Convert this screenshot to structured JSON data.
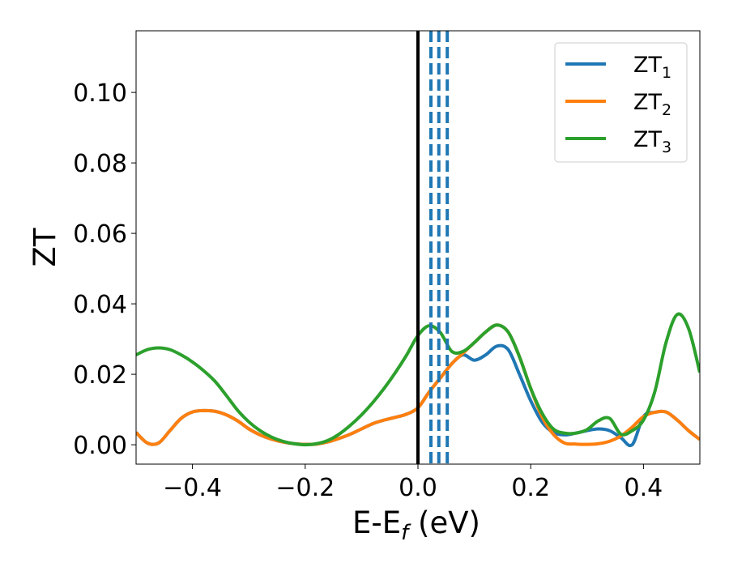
{
  "chart_data": {
    "type": "line",
    "xlabel": {
      "base": "E-E",
      "sub": "f",
      "unit": " (eV)"
    },
    "ylabel": "ZT",
    "xlim": [
      -0.5,
      0.5
    ],
    "ylim": [
      -0.0055,
      0.1175
    ],
    "x_ticks": [
      -0.4,
      -0.2,
      0.0,
      0.2,
      0.4
    ],
    "x_tick_labels": [
      "−0.4",
      "−0.2",
      "0.0",
      "0.2",
      "0.4"
    ],
    "y_ticks": [
      0.0,
      0.02,
      0.04,
      0.06,
      0.08,
      0.1
    ],
    "y_tick_labels": [
      "0.00",
      "0.02",
      "0.04",
      "0.06",
      "0.08",
      "0.10"
    ],
    "grid": false,
    "legend_position": "top-right",
    "series": [
      {
        "name": "ZT",
        "sub": "1",
        "color": "#1f77b4",
        "points": [
          [
            -0.5,
            0.0035
          ],
          [
            -0.48,
            0.0005
          ],
          [
            -0.46,
            0.0005
          ],
          [
            -0.44,
            0.004
          ],
          [
            -0.42,
            0.0075
          ],
          [
            -0.4,
            0.0093
          ],
          [
            -0.38,
            0.0097
          ],
          [
            -0.36,
            0.0095
          ],
          [
            -0.34,
            0.0085
          ],
          [
            -0.32,
            0.0068
          ],
          [
            -0.3,
            0.0045
          ],
          [
            -0.28,
            0.0028
          ],
          [
            -0.26,
            0.0016
          ],
          [
            -0.24,
            0.0008
          ],
          [
            -0.22,
            0.0003
          ],
          [
            -0.2,
            0.0001
          ],
          [
            -0.18,
            0.0002
          ],
          [
            -0.16,
            0.0008
          ],
          [
            -0.14,
            0.0018
          ],
          [
            -0.12,
            0.003
          ],
          [
            -0.1,
            0.0045
          ],
          [
            -0.08,
            0.006
          ],
          [
            -0.06,
            0.007
          ],
          [
            -0.04,
            0.0078
          ],
          [
            -0.02,
            0.0087
          ],
          [
            0.0,
            0.0105
          ],
          [
            0.02,
            0.015
          ],
          [
            0.04,
            0.019
          ],
          [
            0.06,
            0.023
          ],
          [
            0.08,
            0.0255
          ],
          [
            0.1,
            0.024
          ],
          [
            0.12,
            0.0255
          ],
          [
            0.14,
            0.028
          ],
          [
            0.16,
            0.027
          ],
          [
            0.18,
            0.02
          ],
          [
            0.2,
            0.0125
          ],
          [
            0.22,
            0.0065
          ],
          [
            0.24,
            0.0035
          ],
          [
            0.26,
            0.0028
          ],
          [
            0.28,
            0.0033
          ],
          [
            0.3,
            0.004
          ],
          [
            0.32,
            0.0045
          ],
          [
            0.34,
            0.004
          ],
          [
            0.36,
            0.002
          ],
          [
            0.38,
            0.0
          ],
          [
            0.4,
            0.008
          ],
          [
            0.42,
            0.0092
          ],
          [
            0.44,
            0.0093
          ],
          [
            0.46,
            0.007
          ],
          [
            0.48,
            0.004
          ],
          [
            0.5,
            0.0015
          ]
        ]
      },
      {
        "name": "ZT",
        "sub": "2",
        "color": "#ff7f0e",
        "points": [
          [
            -0.5,
            0.0035
          ],
          [
            -0.48,
            0.0005
          ],
          [
            -0.46,
            0.0005
          ],
          [
            -0.44,
            0.004
          ],
          [
            -0.42,
            0.0075
          ],
          [
            -0.4,
            0.0093
          ],
          [
            -0.38,
            0.0097
          ],
          [
            -0.36,
            0.0095
          ],
          [
            -0.34,
            0.0085
          ],
          [
            -0.32,
            0.0068
          ],
          [
            -0.3,
            0.0045
          ],
          [
            -0.28,
            0.0028
          ],
          [
            -0.26,
            0.0016
          ],
          [
            -0.24,
            0.0008
          ],
          [
            -0.22,
            0.0003
          ],
          [
            -0.2,
            0.0001
          ],
          [
            -0.18,
            0.0002
          ],
          [
            -0.16,
            0.0008
          ],
          [
            -0.14,
            0.0018
          ],
          [
            -0.12,
            0.003
          ],
          [
            -0.1,
            0.0045
          ],
          [
            -0.08,
            0.006
          ],
          [
            -0.06,
            0.007
          ],
          [
            -0.04,
            0.0078
          ],
          [
            -0.02,
            0.0087
          ],
          [
            0.0,
            0.0105
          ],
          [
            0.02,
            0.015
          ],
          [
            0.04,
            0.019
          ],
          [
            0.06,
            0.023
          ],
          [
            0.08,
            0.026
          ],
          [
            0.1,
            0.029
          ],
          [
            0.12,
            0.032
          ],
          [
            0.14,
            0.034
          ],
          [
            0.16,
            0.032
          ],
          [
            0.18,
            0.025
          ],
          [
            0.2,
            0.016
          ],
          [
            0.22,
            0.008
          ],
          [
            0.24,
            0.003
          ],
          [
            0.26,
            0.0005
          ],
          [
            0.28,
            0.0002
          ],
          [
            0.3,
            0.0001
          ],
          [
            0.32,
            0.0003
          ],
          [
            0.34,
            0.001
          ],
          [
            0.36,
            0.0025
          ],
          [
            0.38,
            0.005
          ],
          [
            0.4,
            0.008
          ],
          [
            0.42,
            0.0092
          ],
          [
            0.44,
            0.0093
          ],
          [
            0.46,
            0.007
          ],
          [
            0.48,
            0.004
          ],
          [
            0.5,
            0.0015
          ]
        ]
      },
      {
        "name": "ZT",
        "sub": "3",
        "color": "#2ca02c",
        "points": [
          [
            -0.5,
            0.0255
          ],
          [
            -0.48,
            0.027
          ],
          [
            -0.46,
            0.0275
          ],
          [
            -0.44,
            0.027
          ],
          [
            -0.42,
            0.0255
          ],
          [
            -0.4,
            0.0235
          ],
          [
            -0.38,
            0.021
          ],
          [
            -0.36,
            0.018
          ],
          [
            -0.34,
            0.014
          ],
          [
            -0.32,
            0.0098
          ],
          [
            -0.3,
            0.0065
          ],
          [
            -0.28,
            0.004
          ],
          [
            -0.26,
            0.0022
          ],
          [
            -0.24,
            0.001
          ],
          [
            -0.22,
            0.0003
          ],
          [
            -0.2,
            0.0
          ],
          [
            -0.18,
            0.0003
          ],
          [
            -0.16,
            0.0012
          ],
          [
            -0.14,
            0.003
          ],
          [
            -0.12,
            0.0055
          ],
          [
            -0.1,
            0.0085
          ],
          [
            -0.08,
            0.012
          ],
          [
            -0.06,
            0.016
          ],
          [
            -0.04,
            0.0205
          ],
          [
            -0.02,
            0.0255
          ],
          [
            0.0,
            0.031
          ],
          [
            0.02,
            0.0338
          ],
          [
            0.04,
            0.0318
          ],
          [
            0.06,
            0.0265
          ],
          [
            0.08,
            0.0265
          ],
          [
            0.1,
            0.029
          ],
          [
            0.12,
            0.032
          ],
          [
            0.14,
            0.034
          ],
          [
            0.16,
            0.032
          ],
          [
            0.18,
            0.025
          ],
          [
            0.2,
            0.016
          ],
          [
            0.22,
            0.009
          ],
          [
            0.24,
            0.0045
          ],
          [
            0.26,
            0.0033
          ],
          [
            0.28,
            0.0033
          ],
          [
            0.3,
            0.0043
          ],
          [
            0.32,
            0.0068
          ],
          [
            0.34,
            0.0075
          ],
          [
            0.36,
            0.003
          ],
          [
            0.38,
            0.004
          ],
          [
            0.4,
            0.007
          ],
          [
            0.42,
            0.015
          ],
          [
            0.44,
            0.029
          ],
          [
            0.46,
            0.037
          ],
          [
            0.48,
            0.033
          ],
          [
            0.5,
            0.0205
          ]
        ]
      }
    ],
    "vlines": [
      {
        "x": 0.0,
        "color": "#000000",
        "style": "solid"
      },
      {
        "x": 0.023,
        "color": "#1f77b4",
        "style": "dashed"
      },
      {
        "x": 0.037,
        "color": "#1f77b4",
        "style": "dashed"
      },
      {
        "x": 0.052,
        "color": "#1f77b4",
        "style": "dashed"
      }
    ]
  }
}
